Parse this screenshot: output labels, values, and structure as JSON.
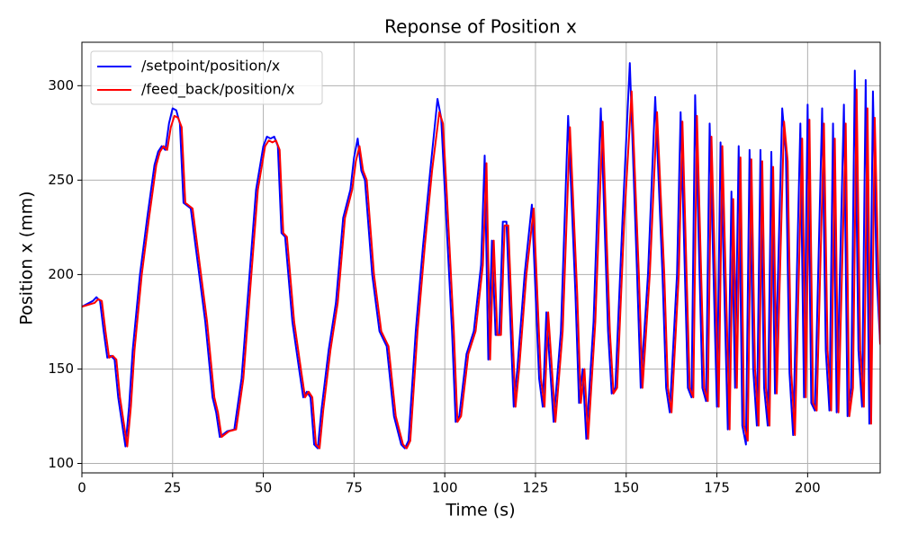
{
  "chart_data": {
    "type": "line",
    "title": "Reponse of Position x",
    "x_label": "Time (s)",
    "y_label": "Position x (mm)",
    "xlim": [
      0,
      220
    ],
    "ylim": [
      95,
      323
    ],
    "xticks": [
      0,
      25,
      50,
      75,
      100,
      125,
      150,
      175,
      200
    ],
    "yticks": [
      100,
      150,
      200,
      250,
      300
    ],
    "grid": true,
    "legend": "upper left",
    "series": [
      {
        "name": "/setpoint/position/x",
        "color": "#0000ff",
        "x": [
          0,
          3,
          4,
          5,
          6,
          7,
          8,
          9,
          10,
          11,
          12,
          13,
          14,
          16,
          18,
          20,
          21,
          22,
          23,
          24,
          25,
          26,
          27,
          28,
          30,
          32,
          34,
          36,
          37,
          38,
          40,
          42,
          44,
          46,
          48,
          50,
          51,
          52,
          53,
          54,
          55,
          56,
          58,
          60,
          61,
          62,
          63,
          64,
          65,
          66,
          68,
          70,
          72,
          74,
          75,
          76,
          77,
          78,
          80,
          82,
          84,
          86,
          88,
          89,
          90,
          92,
          94,
          96,
          98,
          99,
          100,
          102,
          103,
          104,
          106,
          108,
          110,
          111,
          112,
          113,
          114,
          115,
          116,
          117,
          119,
          120,
          122,
          124,
          126,
          127,
          128,
          130,
          132,
          134,
          136,
          137,
          138,
          139,
          141,
          143,
          145,
          146,
          147,
          149,
          151,
          153,
          154,
          156,
          158,
          160,
          161,
          162,
          164,
          165,
          167,
          168,
          169,
          171,
          172,
          173,
          175,
          176,
          178,
          179,
          180,
          181,
          182,
          183,
          184,
          185,
          186,
          187,
          188,
          189,
          190,
          191,
          193,
          194,
          195,
          196,
          198,
          199,
          200,
          201,
          202,
          204,
          205,
          206,
          207,
          208,
          210,
          211,
          212,
          213,
          214,
          215,
          216,
          217,
          218,
          219,
          220
        ],
        "values": [
          183,
          186,
          188,
          186,
          170,
          156,
          157,
          155,
          135,
          122,
          109,
          130,
          160,
          200,
          230,
          258,
          265,
          268,
          266,
          280,
          288,
          287,
          280,
          238,
          235,
          205,
          175,
          135,
          127,
          114,
          117,
          118,
          145,
          195,
          245,
          268,
          273,
          272,
          273,
          268,
          222,
          220,
          175,
          148,
          135,
          138,
          135,
          110,
          108,
          128,
          160,
          185,
          230,
          245,
          262,
          272,
          255,
          250,
          200,
          170,
          162,
          125,
          110,
          108,
          112,
          170,
          215,
          255,
          293,
          283,
          245,
          170,
          122,
          125,
          158,
          170,
          205,
          263,
          155,
          218,
          168,
          168,
          228,
          228,
          130,
          150,
          200,
          237,
          145,
          130,
          180,
          122,
          170,
          284,
          190,
          132,
          150,
          113,
          175,
          288,
          170,
          137,
          140,
          230,
          312,
          200,
          140,
          200,
          294,
          200,
          140,
          127,
          200,
          286,
          140,
          135,
          295,
          140,
          133,
          280,
          130,
          270,
          118,
          244,
          140,
          268,
          120,
          110,
          266,
          150,
          120,
          266,
          140,
          120,
          265,
          137,
          288,
          265,
          148,
          115,
          280,
          135,
          290,
          132,
          128,
          288,
          160,
          128,
          280,
          127,
          290,
          125,
          140,
          308,
          160,
          130,
          303,
          121,
          297,
          200,
          163
        ]
      },
      {
        "name": "/feed_back/position/x",
        "color": "#ff0000",
        "x": [
          0,
          3.5,
          4.5,
          5.5,
          6.5,
          7.5,
          8.5,
          9.5,
          10.5,
          11.5,
          12.5,
          13.5,
          14.5,
          16.5,
          18.5,
          20.5,
          21.5,
          22.5,
          23.5,
          24.5,
          25.5,
          26.5,
          27.5,
          28.5,
          30.5,
          32.5,
          34.5,
          36.5,
          37.5,
          38.5,
          40.5,
          42.5,
          44.5,
          46.5,
          48.5,
          50.5,
          51.5,
          52.5,
          53.5,
          54.5,
          55.5,
          56.5,
          58.5,
          60.5,
          61.5,
          62.5,
          63.5,
          64.5,
          65.5,
          66.5,
          68.5,
          70.5,
          72.5,
          74.5,
          75.5,
          76.5,
          77.5,
          78.5,
          80.5,
          82.5,
          84.5,
          86.5,
          88.5,
          89.5,
          90.5,
          92.5,
          94.5,
          96.5,
          98.5,
          99.5,
          100.5,
          102.5,
          103.5,
          104.5,
          106.5,
          108.5,
          110.5,
          111.5,
          112.5,
          113.5,
          114.5,
          115.5,
          116.5,
          117.5,
          119.5,
          120.5,
          122.5,
          124.5,
          126.5,
          127.5,
          128.5,
          130.5,
          132.5,
          134.5,
          136.5,
          137.5,
          138.5,
          139.5,
          141.5,
          143.5,
          145.5,
          146.5,
          147.5,
          149.5,
          151.5,
          153.5,
          154.5,
          156.5,
          158.5,
          160.5,
          161.5,
          162.5,
          164.5,
          165.5,
          167.5,
          168.5,
          169.5,
          171.5,
          172.5,
          173.5,
          175.5,
          176.5,
          178.5,
          179.5,
          180.5,
          181.5,
          182.5,
          183.5,
          184.5,
          185.5,
          186.5,
          187.5,
          188.5,
          189.5,
          190.5,
          191.5,
          193.5,
          194.5,
          195.5,
          196.5,
          198.5,
          199.5,
          200.5,
          201.5,
          202.5,
          204.5,
          205.5,
          206.5,
          207.5,
          208.5,
          210.5,
          211.5,
          212.5,
          213.5,
          214.5,
          215.5,
          216.5,
          217.5,
          218.5,
          219.5,
          220
        ],
        "values": [
          183,
          185,
          187,
          186,
          170,
          156,
          157,
          155,
          135,
          122,
          109,
          130,
          160,
          200,
          230,
          258,
          265,
          268,
          266,
          278,
          284,
          283,
          278,
          238,
          235,
          205,
          175,
          135,
          127,
          114,
          117,
          118,
          145,
          195,
          245,
          268,
          271,
          270,
          271,
          266,
          222,
          220,
          175,
          148,
          135,
          138,
          135,
          110,
          108,
          128,
          160,
          185,
          230,
          245,
          260,
          268,
          255,
          250,
          200,
          170,
          162,
          125,
          110,
          108,
          112,
          170,
          215,
          255,
          286,
          280,
          245,
          170,
          122,
          125,
          158,
          170,
          205,
          259,
          155,
          218,
          168,
          168,
          226,
          226,
          130,
          150,
          200,
          235,
          145,
          130,
          180,
          122,
          170,
          278,
          190,
          132,
          150,
          113,
          175,
          281,
          170,
          137,
          140,
          230,
          297,
          200,
          140,
          200,
          286,
          200,
          140,
          127,
          200,
          281,
          140,
          135,
          284,
          140,
          133,
          273,
          130,
          268,
          118,
          240,
          140,
          262,
          120,
          112,
          261,
          150,
          120,
          260,
          140,
          120,
          257,
          137,
          281,
          260,
          148,
          115,
          272,
          135,
          282,
          132,
          128,
          280,
          160,
          128,
          272,
          127,
          280,
          125,
          140,
          298,
          160,
          130,
          288,
          121,
          283,
          200,
          163
        ]
      }
    ]
  }
}
